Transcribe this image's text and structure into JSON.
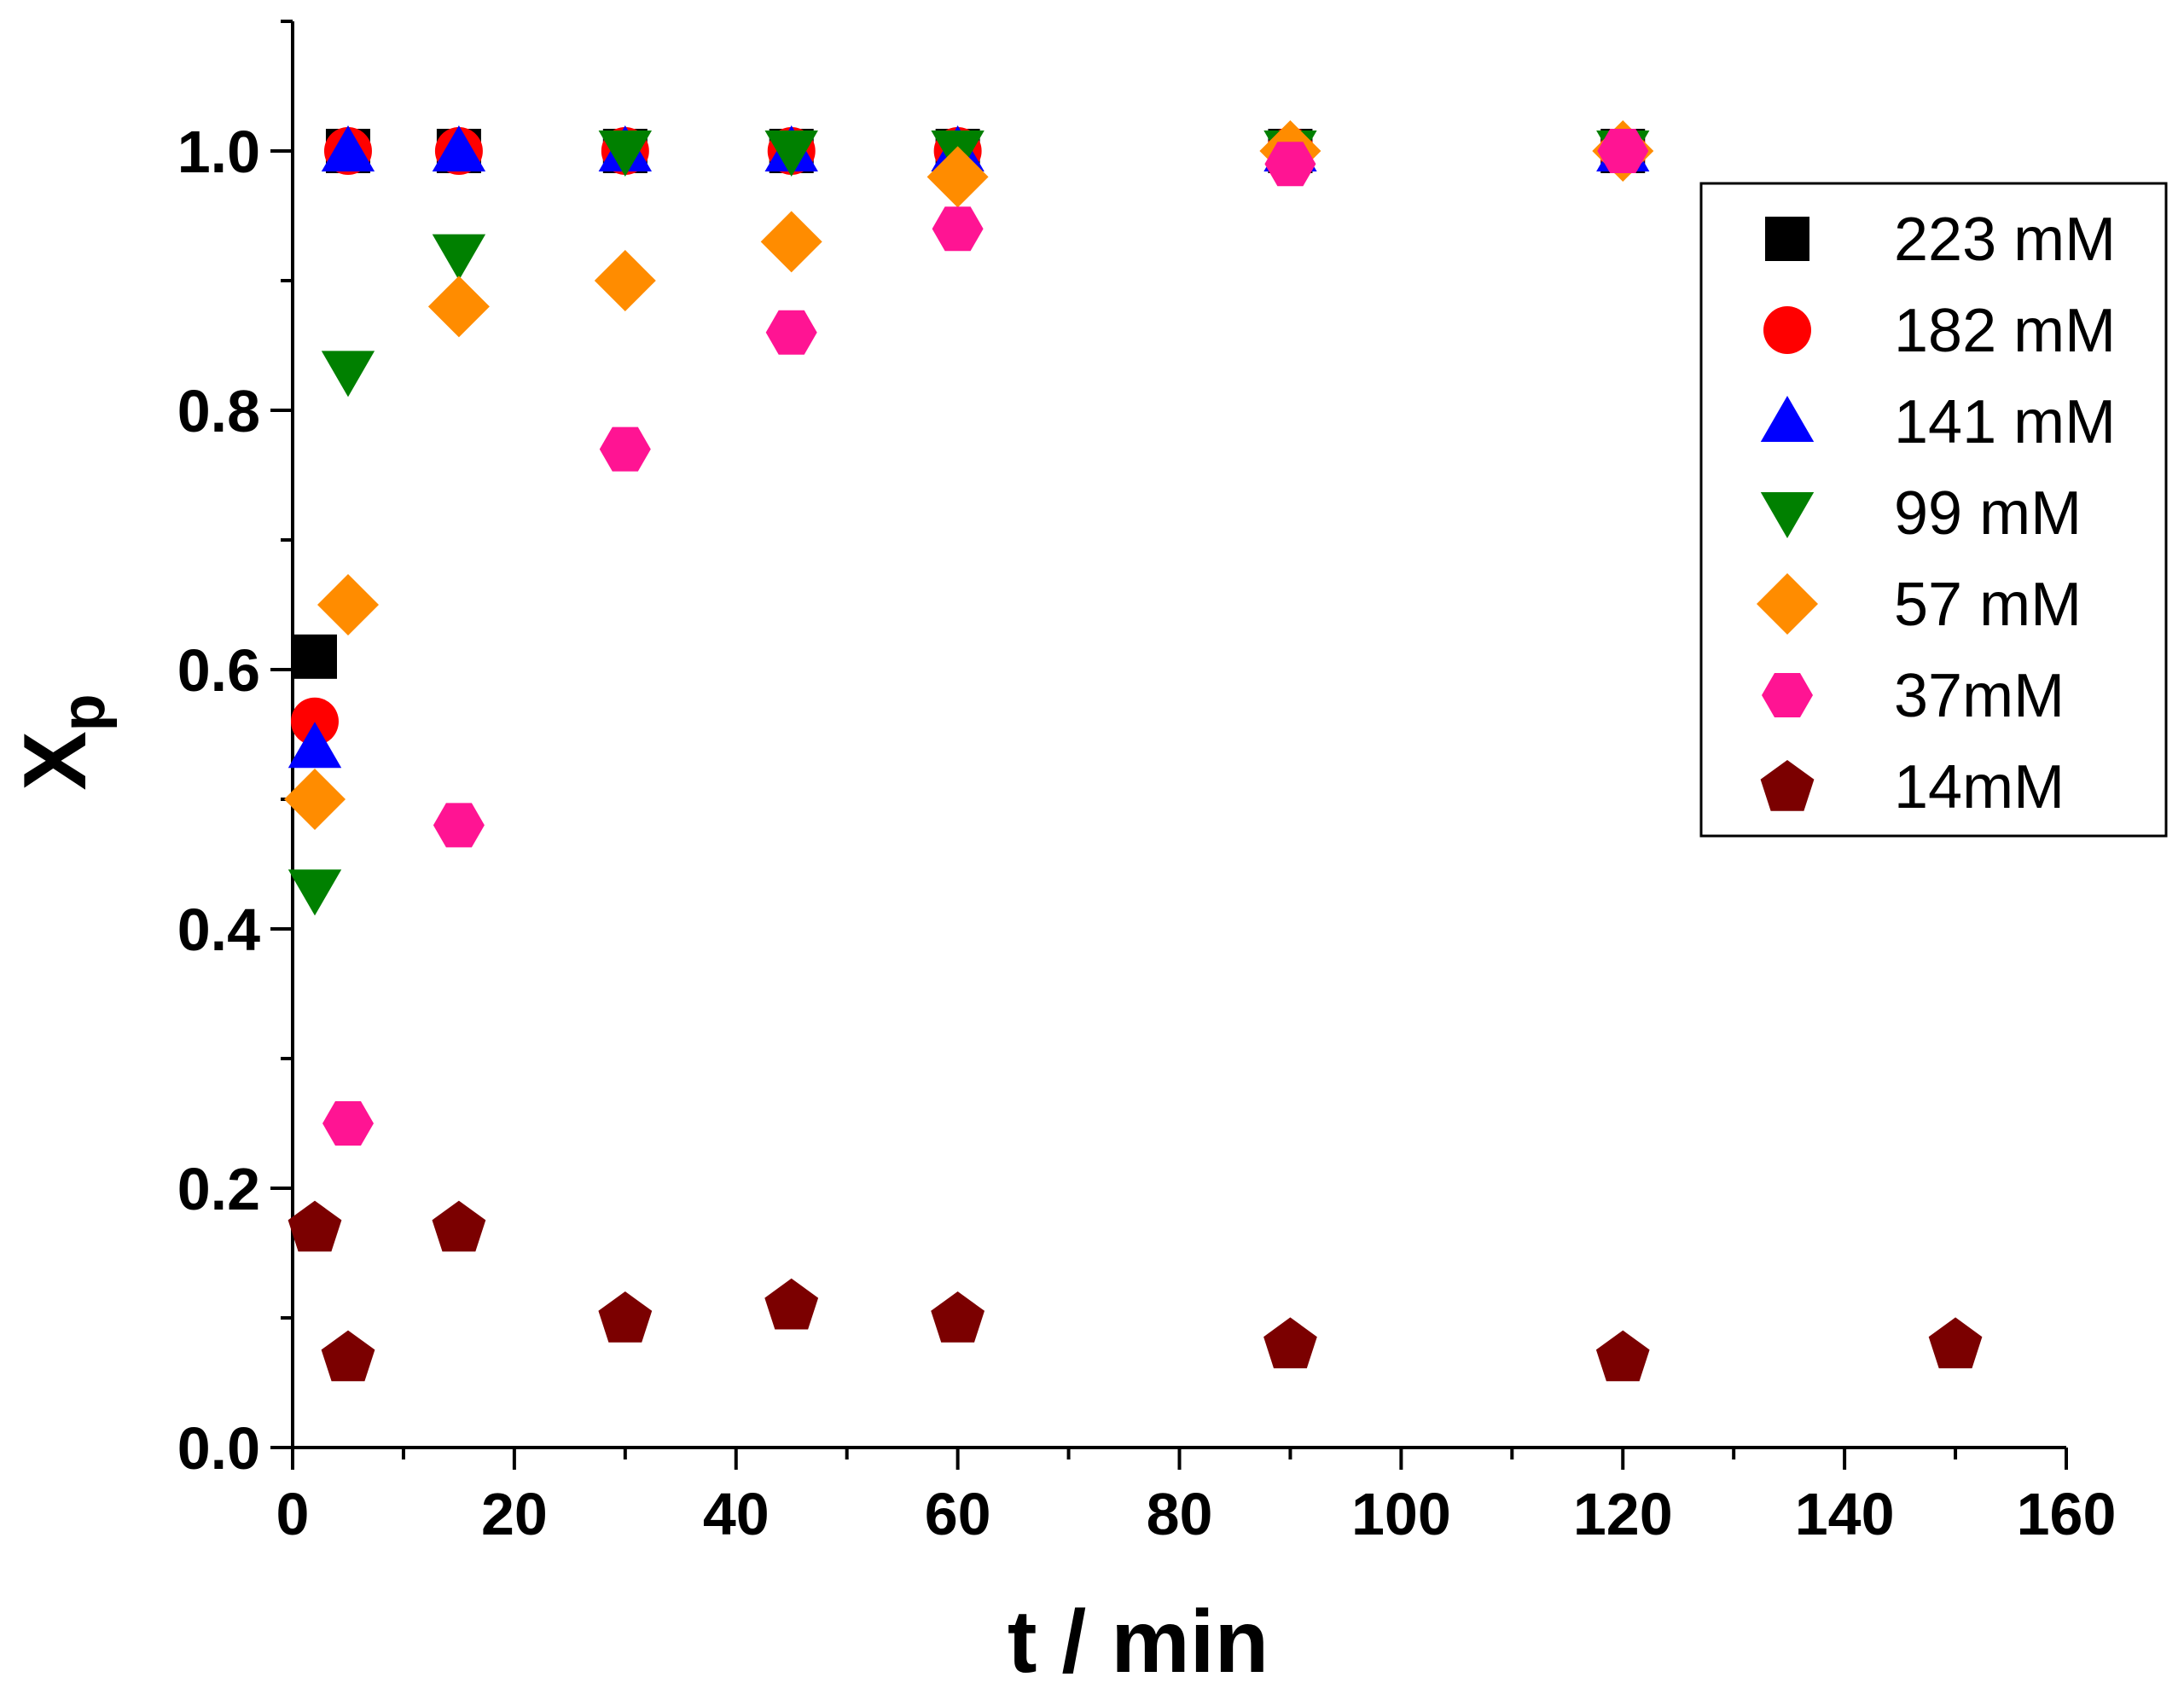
{
  "chart_data": {
    "type": "scatter",
    "title": "",
    "xlabel": "t / min",
    "ylabel_main": "X",
    "ylabel_sub": "p",
    "xlim": [
      0,
      160
    ],
    "ylim": [
      0,
      1.1
    ],
    "x_ticks": [
      "0",
      "20",
      "40",
      "60",
      "80",
      "100",
      "120",
      "140",
      "160"
    ],
    "y_ticks": [
      "0.0",
      "0.2",
      "0.4",
      "0.6",
      "0.8",
      "1.0"
    ],
    "grid": false,
    "legend_position": "top-right",
    "series": [
      {
        "name": "223 mM",
        "marker": "square",
        "color": "#000000",
        "points": [
          [
            2,
            0.61
          ],
          [
            5,
            1.0
          ],
          [
            15,
            1.0
          ],
          [
            30,
            1.0
          ],
          [
            45,
            1.0
          ],
          [
            60,
            1.0
          ],
          [
            90,
            1.0
          ],
          [
            120,
            1.0
          ]
        ]
      },
      {
        "name": "182 mM",
        "marker": "circle",
        "color": "#ff0000",
        "points": [
          [
            2,
            0.56
          ],
          [
            5,
            1.0
          ],
          [
            15,
            1.0
          ],
          [
            30,
            1.0
          ],
          [
            45,
            1.0
          ],
          [
            60,
            1.0
          ],
          [
            90,
            1.0
          ],
          [
            120,
            1.0
          ]
        ]
      },
      {
        "name": "141 mM",
        "marker": "triangle-up",
        "color": "#0000ff",
        "points": [
          [
            2,
            0.54
          ],
          [
            5,
            1.0
          ],
          [
            15,
            1.0
          ],
          [
            30,
            1.0
          ],
          [
            45,
            1.0
          ],
          [
            60,
            1.0
          ],
          [
            90,
            1.0
          ],
          [
            120,
            1.0
          ]
        ]
      },
      {
        "name": "99 mM",
        "marker": "triangle-down",
        "color": "#008000",
        "points": [
          [
            2,
            0.43
          ],
          [
            5,
            0.83
          ],
          [
            15,
            0.92
          ],
          [
            30,
            1.0
          ],
          [
            45,
            1.0
          ],
          [
            60,
            1.0
          ],
          [
            90,
            1.0
          ],
          [
            120,
            1.0
          ]
        ]
      },
      {
        "name": "57 mM",
        "marker": "diamond",
        "color": "#ff8c00",
        "points": [
          [
            2,
            0.5
          ],
          [
            5,
            0.65
          ],
          [
            15,
            0.88
          ],
          [
            30,
            0.9
          ],
          [
            45,
            0.93
          ],
          [
            60,
            0.98
          ],
          [
            90,
            1.0
          ],
          [
            120,
            1.0
          ]
        ]
      },
      {
        "name": "37mM",
        "marker": "hexagon",
        "color": "#ff1493",
        "points": [
          [
            5,
            0.25
          ],
          [
            15,
            0.48
          ],
          [
            30,
            0.77
          ],
          [
            45,
            0.86
          ],
          [
            60,
            0.94
          ],
          [
            90,
            0.99
          ],
          [
            120,
            1.0
          ]
        ]
      },
      {
        "name": "14mM",
        "marker": "pentagon",
        "color": "#7b0000",
        "points": [
          [
            2,
            0.17
          ],
          [
            5,
            0.07
          ],
          [
            15,
            0.17
          ],
          [
            30,
            0.1
          ],
          [
            45,
            0.11
          ],
          [
            60,
            0.1
          ],
          [
            90,
            0.08
          ],
          [
            120,
            0.07
          ],
          [
            150,
            0.08
          ]
        ]
      }
    ]
  }
}
